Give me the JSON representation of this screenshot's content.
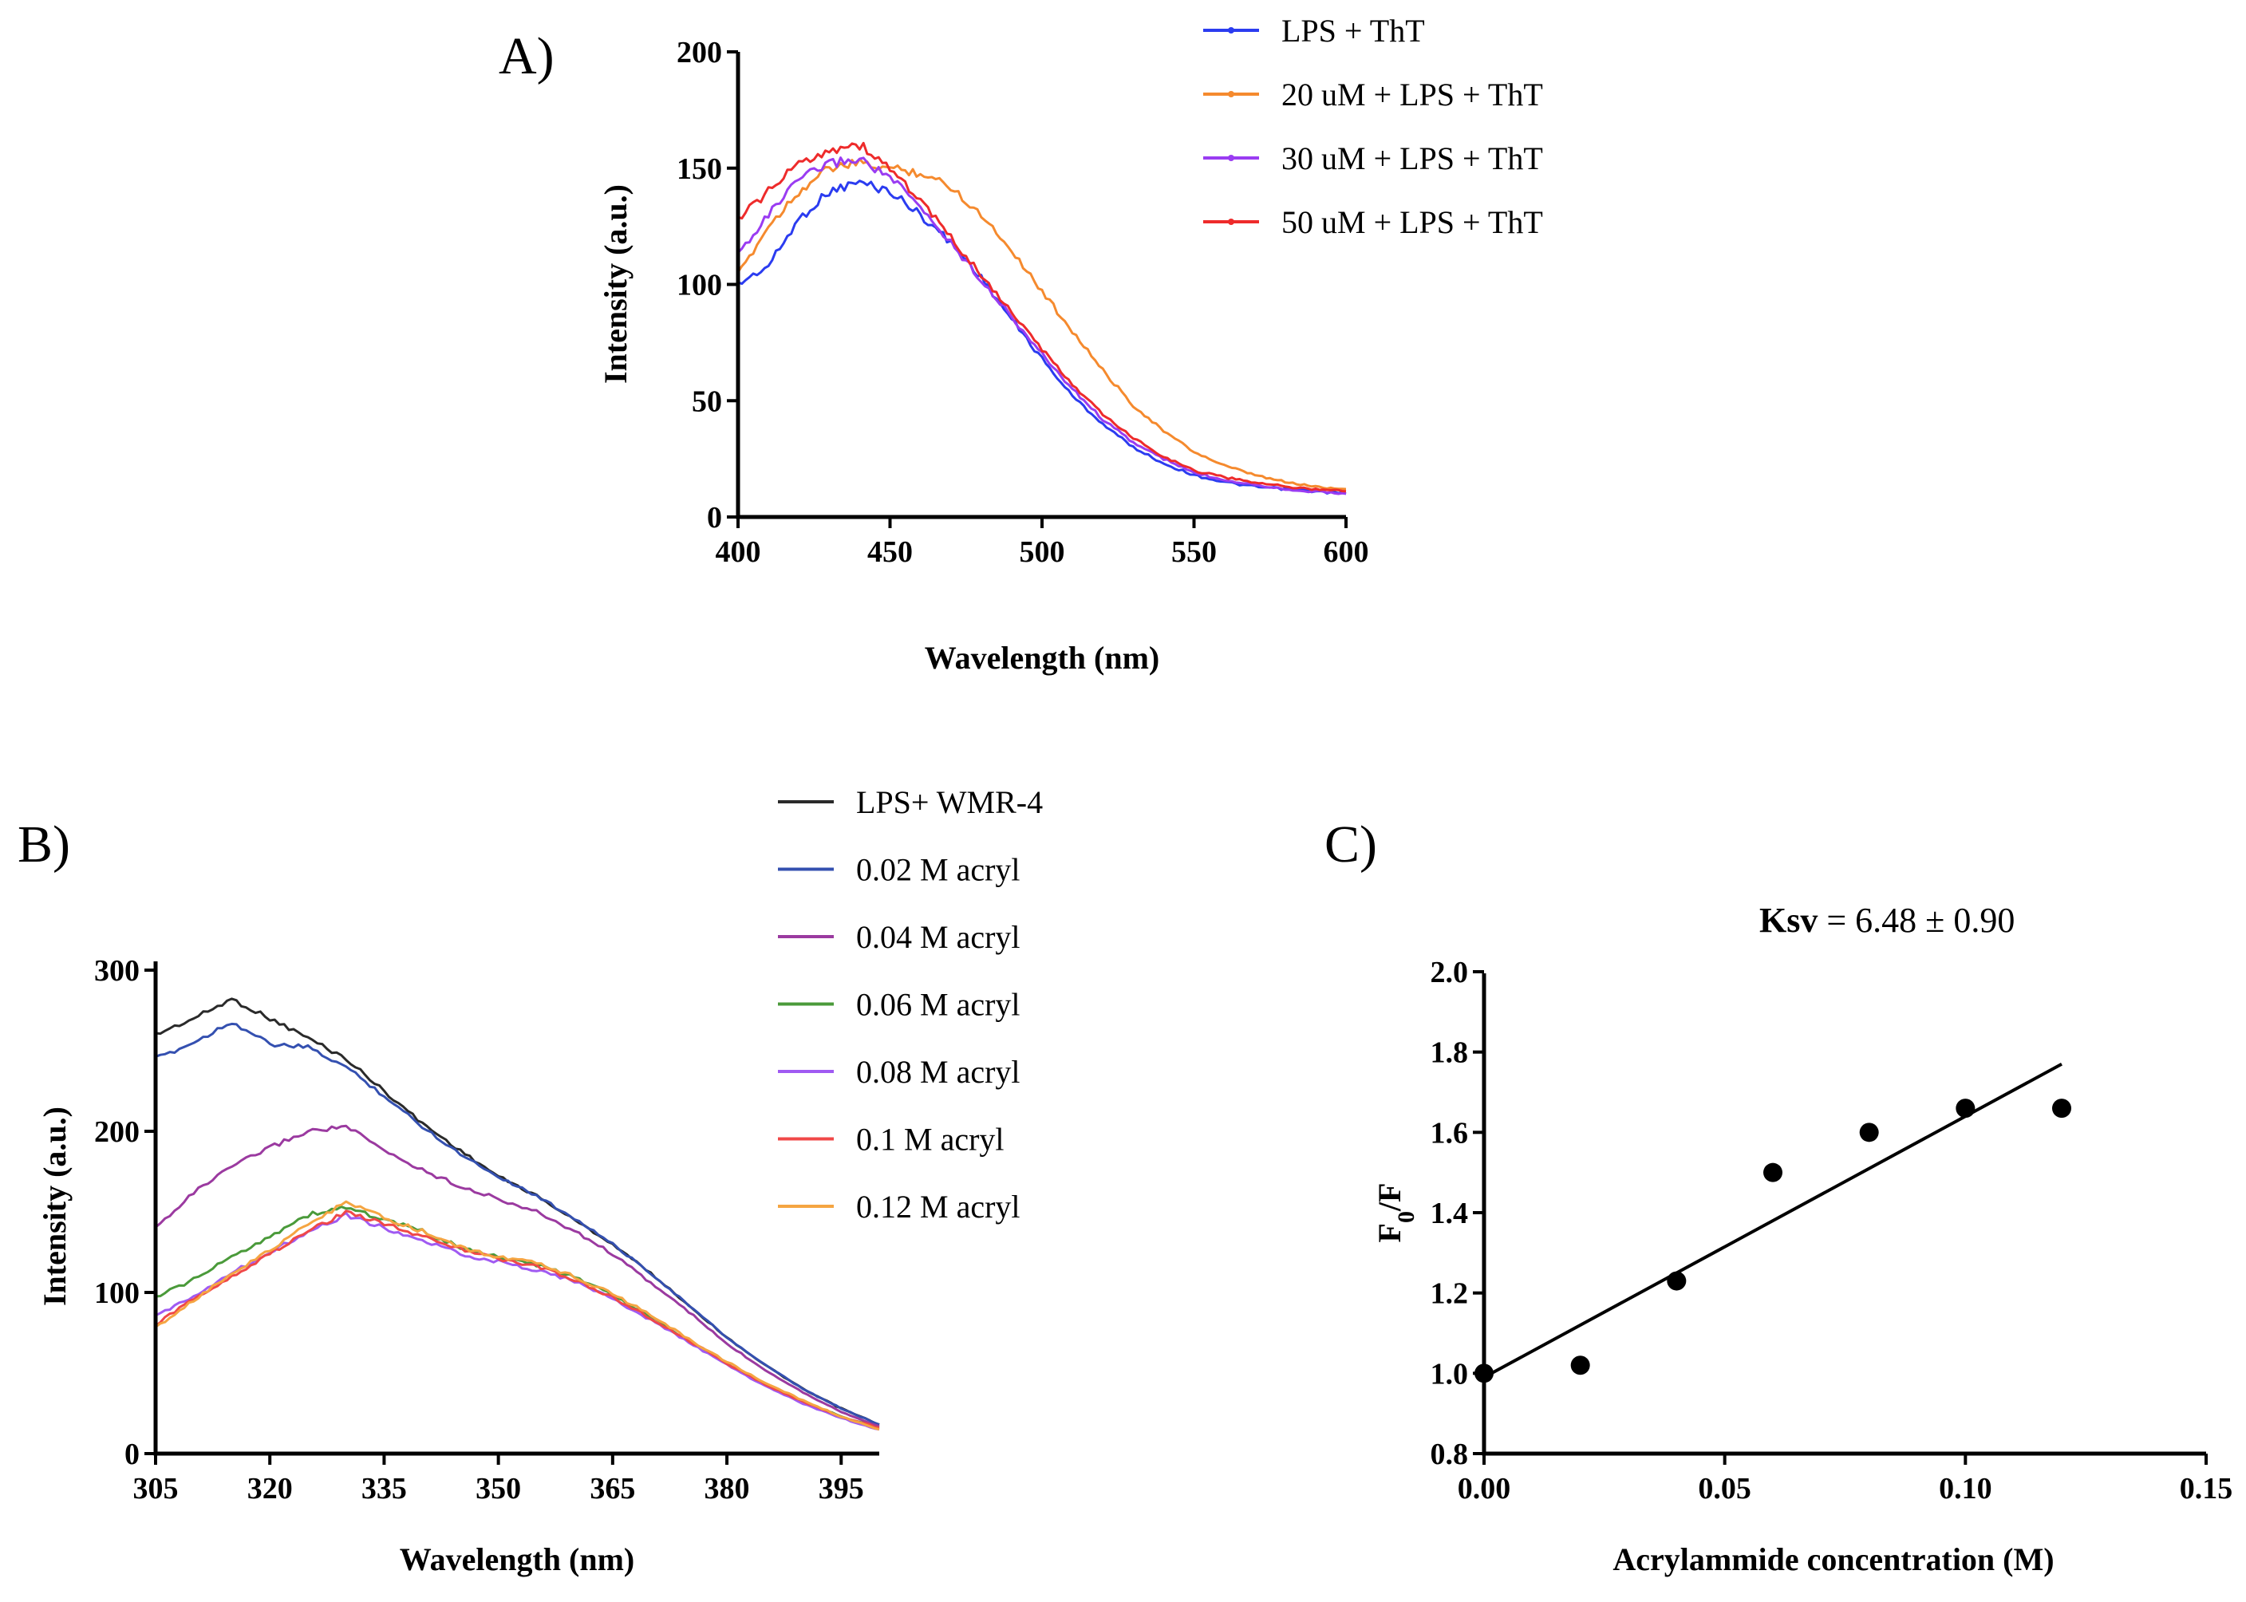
{
  "panels": {
    "A": {
      "label": "A)",
      "chart_data": {
        "type": "line",
        "title": "",
        "xlabel": "Wavelength (nm)",
        "ylabel": "Intensity (a.u.)",
        "xlim": [
          400,
          600
        ],
        "ylim": [
          0,
          200
        ],
        "xticks": [
          "400",
          "450",
          "500",
          "550",
          "600"
        ],
        "yticks": [
          "0",
          "50",
          "100",
          "150",
          "200"
        ],
        "legend_position": "top-right",
        "x": [
          400,
          410,
          420,
          430,
          440,
          450,
          460,
          470,
          480,
          490,
          500,
          510,
          520,
          530,
          540,
          550,
          560,
          570,
          580,
          590,
          600
        ],
        "series": [
          {
            "name": "LPS + ThT",
            "color": "#2b3cf0",
            "values": [
              100,
              108,
              128,
              140,
              144,
              140,
              130,
              118,
              103,
              85,
              68,
              52,
              40,
              30,
              23,
              18,
              15,
              13,
              12,
              11,
              10
            ]
          },
          {
            "name": "20 uM + LPS + ThT",
            "color": "#f58a2e",
            "values": [
              104,
              125,
              140,
              150,
              152,
              150,
              148,
              142,
              130,
              115,
              97,
              80,
              63,
              48,
              37,
              28,
              22,
              18,
              15,
              13,
              12
            ]
          },
          {
            "name": "30 uM + LPS + ThT",
            "color": "#9a3cf2",
            "values": [
              113,
              130,
              145,
              152,
              154,
              146,
              133,
              118,
              102,
              86,
              70,
              55,
              42,
              32,
              25,
              19,
              16,
              14,
              12,
              11,
              10
            ]
          },
          {
            "name": "50 uM + LPS + ThT",
            "color": "#ee2b2b",
            "values": [
              128,
              140,
              152,
              158,
              160,
              150,
              136,
              120,
              104,
              88,
              72,
              57,
              44,
              34,
              26,
              20,
              17,
              15,
              13,
              12,
              11
            ]
          }
        ]
      }
    },
    "B": {
      "label": "B)",
      "chart_data": {
        "type": "line",
        "title": "",
        "xlabel": "Wavelength (nm)",
        "ylabel": "Intensity (a.u.)",
        "xlim": [
          305,
          400
        ],
        "ylim": [
          0,
          300
        ],
        "xticks": [
          "305",
          "320",
          "335",
          "350",
          "365",
          "380",
          "395"
        ],
        "yticks": [
          "0",
          "100",
          "200",
          "300"
        ],
        "legend_position": "top-right",
        "x": [
          305,
          310,
          315,
          320,
          325,
          330,
          335,
          340,
          345,
          350,
          355,
          360,
          365,
          370,
          375,
          380,
          385,
          390,
          395,
          400
        ],
        "series": [
          {
            "name": "LPS+ WMR-4",
            "color": "#2a2a2a",
            "values": [
              260,
              270,
              282,
              270,
              258,
              245,
              225,
              205,
              188,
              172,
              160,
              145,
              130,
              112,
              92,
              72,
              55,
              40,
              28,
              18
            ]
          },
          {
            "name": "0.02 M acryl",
            "color": "#3450b0",
            "values": [
              245,
              255,
              268,
              254,
              252,
              240,
              222,
              203,
              186,
              172,
              160,
              146,
              130,
              112,
              92,
              72,
              55,
              40,
              28,
              18
            ]
          },
          {
            "name": "0.04 M acryl",
            "color": "#9b3aa0",
            "values": [
              140,
              162,
              178,
              190,
              200,
              203,
              188,
              176,
              166,
              158,
              150,
              138,
              124,
              106,
              88,
              68,
              52,
              38,
              26,
              17
            ]
          },
          {
            "name": "0.06 M acryl",
            "color": "#4a9a3a",
            "values": [
              97,
              108,
              122,
              135,
              148,
              153,
              145,
              138,
              128,
              122,
              117,
              110,
              98,
              85,
              70,
              56,
              43,
              32,
              23,
              16
            ]
          },
          {
            "name": "0.08 M acryl",
            "color": "#a05af2",
            "values": [
              85,
              98,
              112,
              125,
              138,
              148,
              140,
              132,
              124,
              119,
              114,
              107,
              96,
              83,
              69,
              55,
              42,
              31,
              22,
              15
            ]
          },
          {
            "name": "0.1 M acryl",
            "color": "#f04848",
            "values": [
              80,
              96,
              110,
              124,
              138,
              150,
              143,
              135,
              127,
              121,
              116,
              108,
              97,
              84,
              70,
              56,
              43,
              32,
              23,
              16
            ]
          },
          {
            "name": "0.12 M acryl",
            "color": "#f5a542",
            "values": [
              78,
              95,
              112,
              126,
              142,
              156,
              146,
              138,
              128,
              122,
              118,
              110,
              99,
              86,
              71,
              57,
              44,
              33,
              23,
              15
            ]
          }
        ]
      }
    },
    "C": {
      "label": "C)",
      "annotation": {
        "bold": "Ksv",
        "rest": " = 6.48 ± 0.90"
      },
      "chart_data": {
        "type": "scatter",
        "title": "",
        "xlabel": "Acrylammide concentration (M)",
        "ylabel_main": "F",
        "ylabel_sub": "0",
        "ylabel_tail": "/F",
        "xlim": [
          0,
          0.15
        ],
        "ylim": [
          0.8,
          2.0
        ],
        "xticks": [
          "0.00",
          "0.05",
          "0.10",
          "0.15"
        ],
        "yticks": [
          "0.8",
          "1.0",
          "1.2",
          "1.4",
          "1.6",
          "1.8",
          "2.0"
        ],
        "points": {
          "x": [
            0.0,
            0.02,
            0.04,
            0.06,
            0.08,
            0.1,
            0.12
          ],
          "y": [
            1.0,
            1.02,
            1.23,
            1.5,
            1.6,
            1.66,
            1.66
          ]
        },
        "fit": {
          "x": [
            0.0,
            0.12
          ],
          "y": [
            0.99,
            1.77
          ]
        }
      }
    }
  }
}
